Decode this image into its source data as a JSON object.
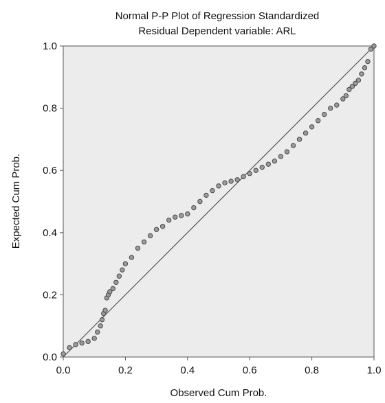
{
  "chart_data": {
    "type": "scatter",
    "title_lines": [
      "Normal P-P Plot of Regression Standardized",
      "Residual Dependent variable: ARL"
    ],
    "xlabel": "Observed Cum Prob.",
    "ylabel": "Expected Cum Prob.",
    "xlim": [
      0,
      1
    ],
    "ylim": [
      0,
      1
    ],
    "x_ticks": [
      "0.0",
      "0.2",
      "0.4",
      "0.6",
      "0.8",
      "1.0"
    ],
    "y_ticks": [
      "0.0",
      "0.2",
      "0.4",
      "0.6",
      "0.8",
      "1.0"
    ],
    "reference_line": {
      "from": [
        0,
        0
      ],
      "to": [
        1,
        1
      ]
    },
    "grid": false,
    "colors": {
      "plot_background": "#ececec",
      "points": "#4a4a4a",
      "line": "#555555"
    },
    "series": [
      {
        "x": [
          0.0,
          0.02,
          0.04,
          0.06,
          0.08,
          0.1,
          0.11,
          0.12,
          0.125,
          0.13,
          0.135,
          0.14,
          0.145,
          0.15,
          0.16,
          0.17,
          0.18,
          0.19,
          0.2,
          0.22,
          0.24,
          0.26,
          0.28,
          0.3,
          0.32,
          0.34,
          0.36,
          0.38,
          0.4,
          0.42,
          0.44,
          0.46,
          0.48,
          0.5,
          0.52,
          0.54,
          0.56,
          0.58,
          0.6,
          0.62,
          0.64,
          0.66,
          0.68,
          0.7,
          0.72,
          0.74,
          0.76,
          0.78,
          0.8,
          0.82,
          0.84,
          0.86,
          0.88,
          0.9,
          0.91,
          0.92,
          0.93,
          0.94,
          0.95,
          0.96,
          0.97,
          0.98,
          0.99,
          1.0
        ],
        "y": [
          0.01,
          0.03,
          0.04,
          0.045,
          0.05,
          0.06,
          0.08,
          0.1,
          0.12,
          0.14,
          0.15,
          0.19,
          0.2,
          0.21,
          0.22,
          0.24,
          0.26,
          0.28,
          0.3,
          0.32,
          0.35,
          0.37,
          0.39,
          0.41,
          0.42,
          0.44,
          0.45,
          0.455,
          0.46,
          0.48,
          0.5,
          0.52,
          0.535,
          0.55,
          0.56,
          0.565,
          0.57,
          0.58,
          0.59,
          0.6,
          0.61,
          0.62,
          0.63,
          0.645,
          0.66,
          0.68,
          0.7,
          0.72,
          0.74,
          0.76,
          0.78,
          0.8,
          0.81,
          0.83,
          0.84,
          0.86,
          0.87,
          0.88,
          0.89,
          0.91,
          0.93,
          0.95,
          0.99,
          1.0
        ]
      }
    ]
  }
}
